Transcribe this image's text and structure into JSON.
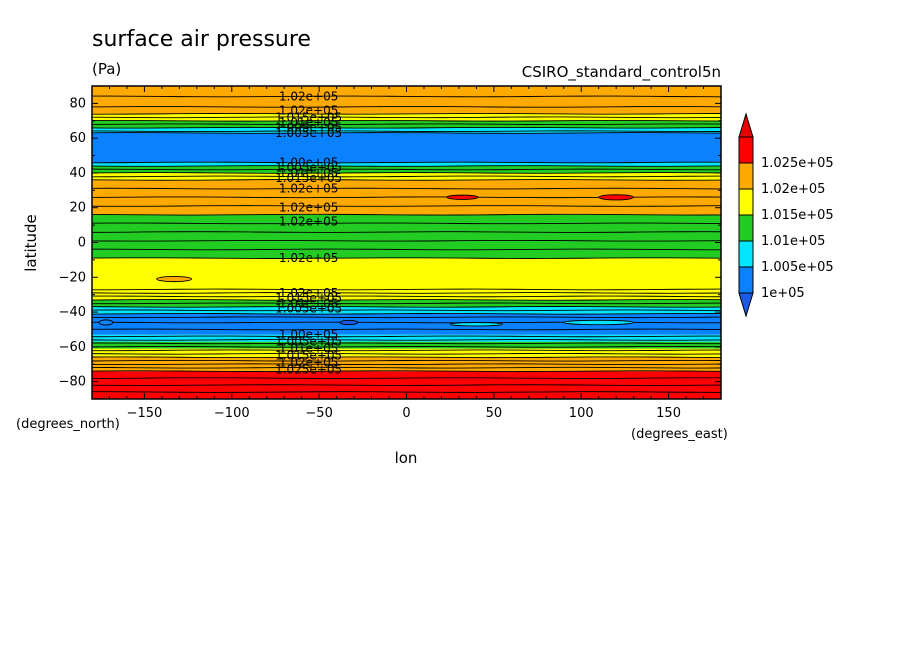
{
  "chart_data": {
    "type": "heatmap",
    "title": "surface air pressure",
    "units": "(Pa)",
    "dataset": "CSIRO_standard_control5n",
    "xlabel": "lon",
    "ylabel": "latitude",
    "x_units": "(degrees_east)",
    "y_units": "(degrees_north)",
    "xlim": [
      -180,
      180
    ],
    "ylim": [
      -90,
      90
    ],
    "x_ticks": [
      -150,
      -100,
      -50,
      0,
      50,
      100,
      150
    ],
    "y_ticks": [
      -80,
      -60,
      -40,
      -20,
      0,
      20,
      40,
      60,
      80
    ],
    "x_tick_labels": [
      "−150",
      "−100",
      "−50",
      "0",
      "50",
      "100",
      "150"
    ],
    "y_tick_labels": [
      "−80",
      "−60",
      "−40",
      "−20",
      "0",
      "20",
      "40",
      "60",
      "80"
    ],
    "colorbar": {
      "levels": [
        100000,
        100500,
        101000,
        101500,
        102000,
        102500
      ],
      "labels": [
        "1e+05",
        "1.005e+05",
        "1.01e+05",
        "1.015e+05",
        "1.02e+05",
        "1.025e+05"
      ],
      "colors": [
        "#0a82ff",
        "#00e6ff",
        "#22cc22",
        "#ffff00",
        "#ffaa00",
        "#ff0000"
      ],
      "below_color": "#1a5ae6",
      "above_color": "#e60000",
      "position": "right"
    },
    "zonal_bands": [
      {
        "lat": [
          -90,
          -74
        ],
        "value": 102600
      },
      {
        "lat": [
          -74,
          -66
        ],
        "value": 102200
      },
      {
        "lat": [
          -66,
          -61
        ],
        "value": 101700
      },
      {
        "lat": [
          -61,
          -57
        ],
        "value": 101200
      },
      {
        "lat": [
          -57,
          -53
        ],
        "value": 100700
      },
      {
        "lat": [
          -53,
          -41
        ],
        "value": 100300
      },
      {
        "lat": [
          -41,
          -37
        ],
        "value": 100700
      },
      {
        "lat": [
          -37,
          -33
        ],
        "value": 101200
      },
      {
        "lat": [
          -33,
          -29
        ],
        "value": 101700
      },
      {
        "lat": [
          -29,
          -9
        ],
        "value": 101700
      },
      {
        "lat": [
          -9,
          16
        ],
        "value": 101200
      },
      {
        "lat": [
          16,
          36
        ],
        "value": 102100
      },
      {
        "lat": [
          36,
          40
        ],
        "value": 101700
      },
      {
        "lat": [
          40,
          44
        ],
        "value": 101200
      },
      {
        "lat": [
          44,
          46
        ],
        "value": 100700
      },
      {
        "lat": [
          46,
          63
        ],
        "value": 100200
      },
      {
        "lat": [
          63,
          66
        ],
        "value": 100700
      },
      {
        "lat": [
          66,
          70
        ],
        "value": 101200
      },
      {
        "lat": [
          70,
          74
        ],
        "value": 101700
      },
      {
        "lat": [
          74,
          90
        ],
        "value": 102100
      }
    ],
    "contour_lats": [
      -86,
      -82,
      -78,
      -74,
      -72,
      -70,
      -68,
      -66,
      -64,
      -62,
      -60,
      -58,
      -56,
      -54,
      -50,
      -46,
      -43,
      -41,
      -39,
      -37,
      -35,
      -33,
      -31,
      -29,
      -27,
      -9,
      -4,
      1,
      6,
      11,
      16,
      21,
      26,
      31,
      36,
      38,
      40,
      42,
      44,
      46,
      63,
      64,
      66,
      68,
      70,
      72,
      74,
      78,
      84
    ],
    "cells": [
      {
        "lon": -133,
        "lat": -21,
        "dlon": 20,
        "dlat": 3,
        "value": 102100
      },
      {
        "lon": 32,
        "lat": 26,
        "dlon": 18,
        "dlat": 2.5,
        "value": 102600
      },
      {
        "lon": 120,
        "lat": 26,
        "dlon": 20,
        "dlat": 3,
        "value": 102600
      },
      {
        "lon": -33,
        "lat": -46,
        "dlon": 10,
        "dlat": 2.5,
        "value": 99800
      },
      {
        "lon": -172,
        "lat": -46,
        "dlon": 8,
        "dlat": 3,
        "value": 100300
      },
      {
        "lon": 110,
        "lat": -46,
        "dlon": 40,
        "dlat": 2.5,
        "value": 100700
      },
      {
        "lon": 40,
        "lat": -47,
        "dlon": 30,
        "dlat": 2,
        "value": 100700
      }
    ],
    "contour_labels": [
      {
        "lon": -56,
        "lat": 84,
        "text": "1.02e+05"
      },
      {
        "lon": -56,
        "lat": 76,
        "text": "1.02e+05"
      },
      {
        "lon": -56,
        "lat": 72,
        "text": "1.015e+05"
      },
      {
        "lon": -56,
        "lat": 69,
        "text": "1.01e+05"
      },
      {
        "lon": -56,
        "lat": 66,
        "text": "1.005e+05"
      },
      {
        "lon": -56,
        "lat": 63,
        "text": "1.005e+05"
      },
      {
        "lon": -56,
        "lat": 46,
        "text": "1.00e+05"
      },
      {
        "lon": -56,
        "lat": 43,
        "text": "1.005e+05"
      },
      {
        "lon": -56,
        "lat": 40,
        "text": "1.01e+05"
      },
      {
        "lon": -56,
        "lat": 37,
        "text": "1.015e+05"
      },
      {
        "lon": -56,
        "lat": 31,
        "text": "1.02e+05"
      },
      {
        "lon": -56,
        "lat": 20,
        "text": "1.02e+05"
      },
      {
        "lon": -56,
        "lat": 12,
        "text": "1.02e+05"
      },
      {
        "lon": -56,
        "lat": -9,
        "text": "1.02e+05"
      },
      {
        "lon": -56,
        "lat": -29,
        "text": "1.02e+05"
      },
      {
        "lon": -56,
        "lat": -32,
        "text": "1.015e+05"
      },
      {
        "lon": -56,
        "lat": -35,
        "text": "1.01e+05"
      },
      {
        "lon": -56,
        "lat": -38,
        "text": "1.005e+05"
      },
      {
        "lon": -56,
        "lat": -53,
        "text": "1.00e+05"
      },
      {
        "lon": -56,
        "lat": -57,
        "text": "1.005e+05"
      },
      {
        "lon": -56,
        "lat": -61,
        "text": "1.01e+05"
      },
      {
        "lon": -56,
        "lat": -65,
        "text": "1.015e+05"
      },
      {
        "lon": -56,
        "lat": -69,
        "text": "1.02e+05"
      },
      {
        "lon": -56,
        "lat": -73,
        "text": "1.025e+05"
      }
    ]
  }
}
